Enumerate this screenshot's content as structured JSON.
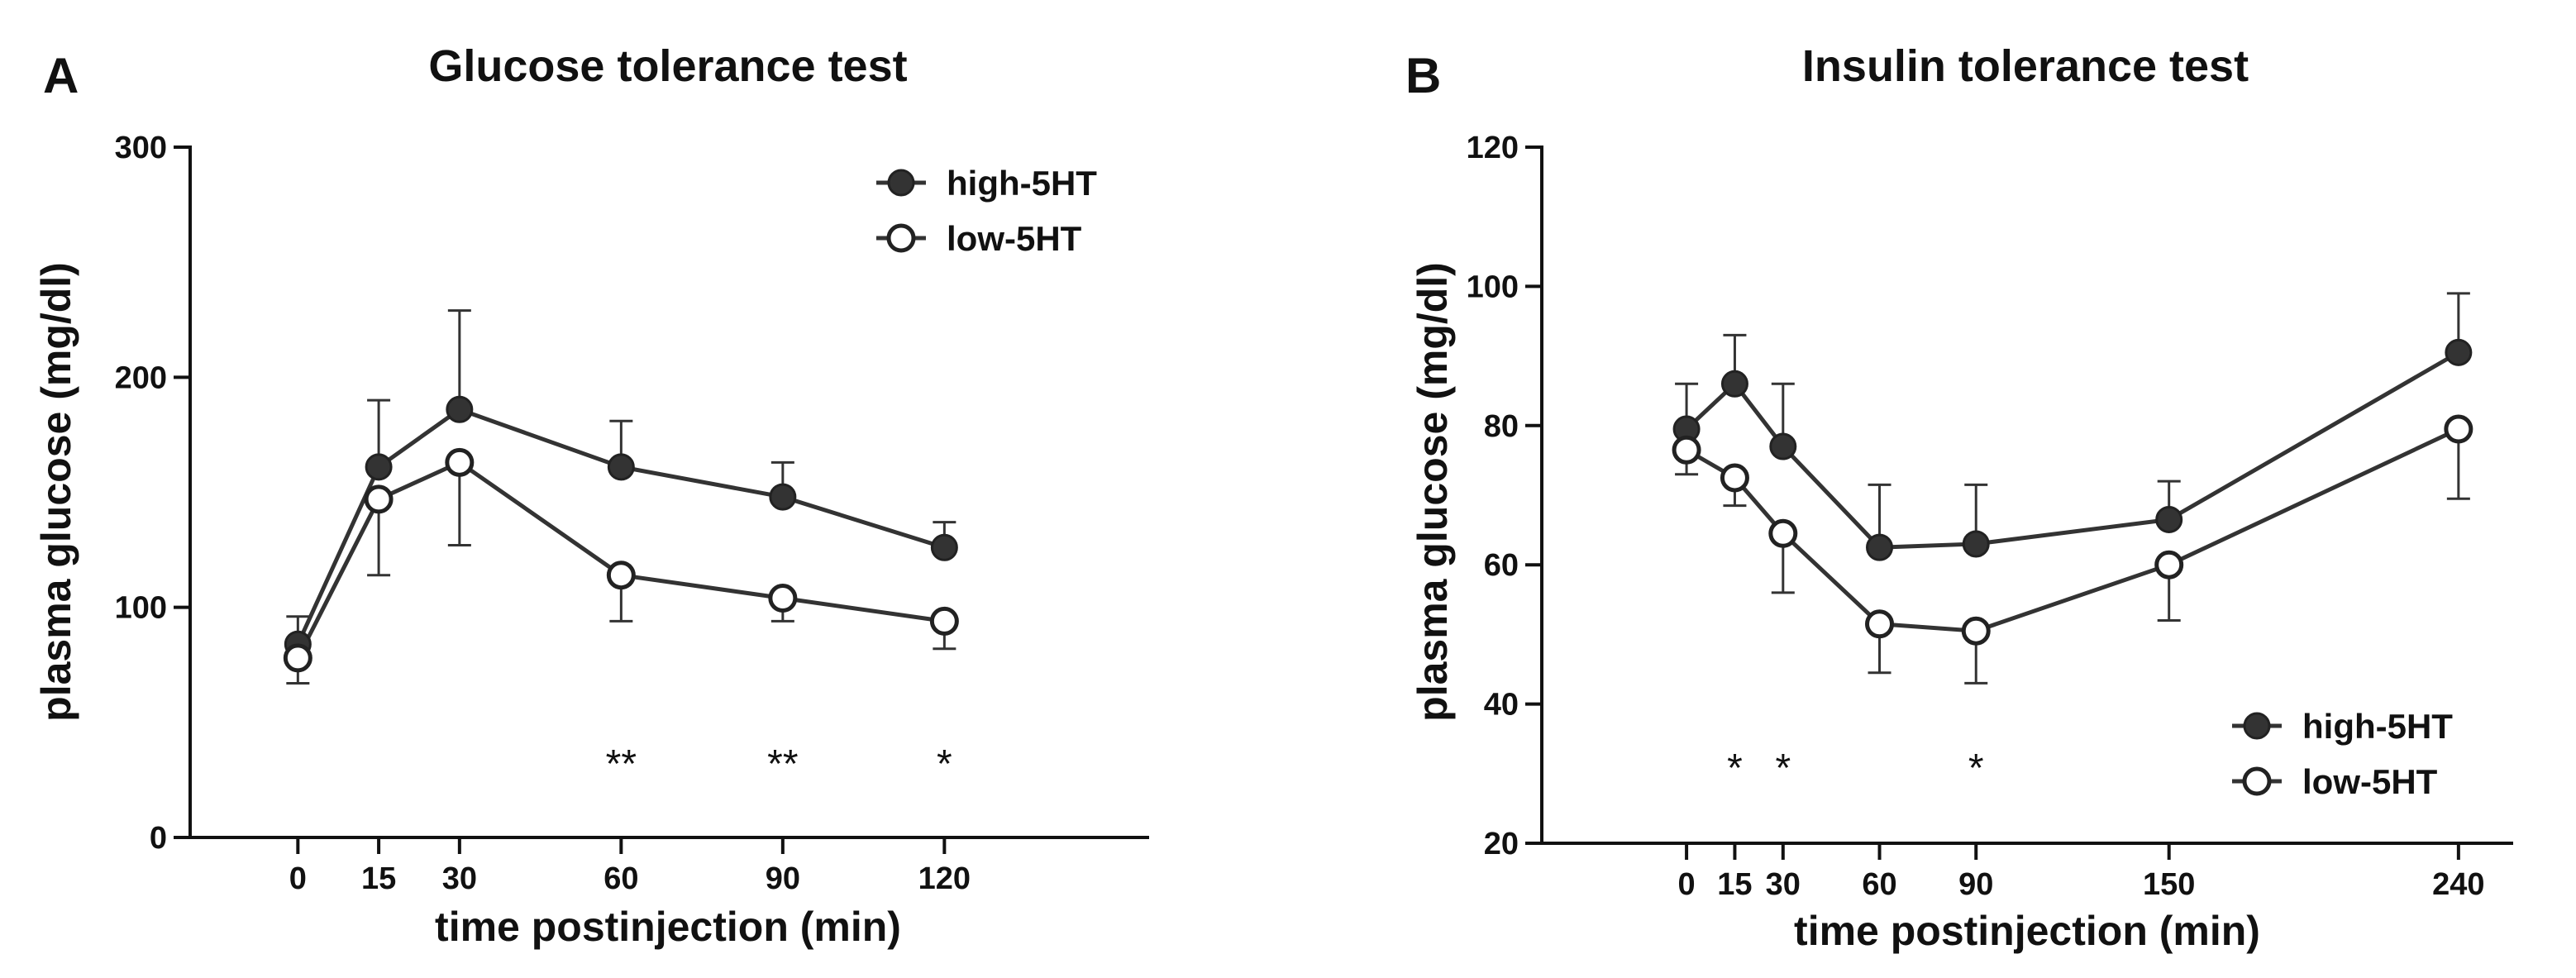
{
  "colors": {
    "high": "#333333",
    "low": "#ffffff",
    "axis": "#111111"
  },
  "chart_data": [
    {
      "panel": "A",
      "type": "line",
      "title": "Glucose tolerance test",
      "xlabel": "time postinjection (min)",
      "ylabel": "plasma glucose (mg/dl)",
      "xlim": [
        -20,
        158
      ],
      "ylim": [
        0,
        300
      ],
      "xticks": [
        0,
        15,
        30,
        60,
        90,
        120
      ],
      "yticks": [
        0,
        100,
        200,
        300
      ],
      "legend_position": "top-right",
      "series": [
        {
          "name": "high-5HT",
          "marker": "filled",
          "x": [
            0,
            15,
            30,
            60,
            90,
            120
          ],
          "y": [
            84,
            161,
            186,
            161,
            148,
            126
          ],
          "err": [
            12,
            29,
            43,
            20,
            15,
            11
          ],
          "err_dir": "up"
        },
        {
          "name": "low-5HT",
          "marker": "open",
          "x": [
            0,
            15,
            30,
            60,
            90,
            120
          ],
          "y": [
            78,
            147,
            163,
            114,
            104,
            94
          ],
          "err": [
            11,
            33,
            36,
            20,
            10,
            12
          ],
          "err_dir": "down"
        }
      ],
      "annotations": [
        {
          "x": 60,
          "text": "**"
        },
        {
          "x": 90,
          "text": "**"
        },
        {
          "x": 120,
          "text": "*"
        }
      ]
    },
    {
      "panel": "B",
      "type": "line",
      "title": "Insulin tolerance test",
      "xlabel": "time postinjection (min)",
      "ylabel": "plasma glucose (mg/dl)",
      "xlim": [
        -45,
        257
      ],
      "ylim": [
        20,
        120
      ],
      "xticks": [
        0,
        15,
        30,
        60,
        90,
        150,
        240
      ],
      "yticks": [
        20,
        40,
        60,
        80,
        100,
        120
      ],
      "legend_position": "bottom-right",
      "series": [
        {
          "name": "high-5HT",
          "marker": "filled",
          "x": [
            0,
            15,
            30,
            60,
            90,
            150,
            240
          ],
          "y": [
            79.5,
            86,
            77,
            62.5,
            63,
            66.5,
            90.5
          ],
          "err": [
            6.5,
            7,
            9,
            9,
            8.5,
            5.5,
            8.5
          ],
          "err_dir": "up"
        },
        {
          "name": "low-5HT",
          "marker": "open",
          "x": [
            0,
            15,
            30,
            60,
            90,
            150,
            240
          ],
          "y": [
            76.5,
            72.5,
            64.5,
            51.5,
            50.5,
            60,
            79.5
          ],
          "err": [
            3.5,
            4,
            8.5,
            7,
            7.5,
            8,
            10
          ],
          "err_dir": "down"
        }
      ],
      "annotations": [
        {
          "x": 15,
          "text": "*"
        },
        {
          "x": 30,
          "text": "*"
        },
        {
          "x": 90,
          "text": "*"
        }
      ]
    }
  ]
}
